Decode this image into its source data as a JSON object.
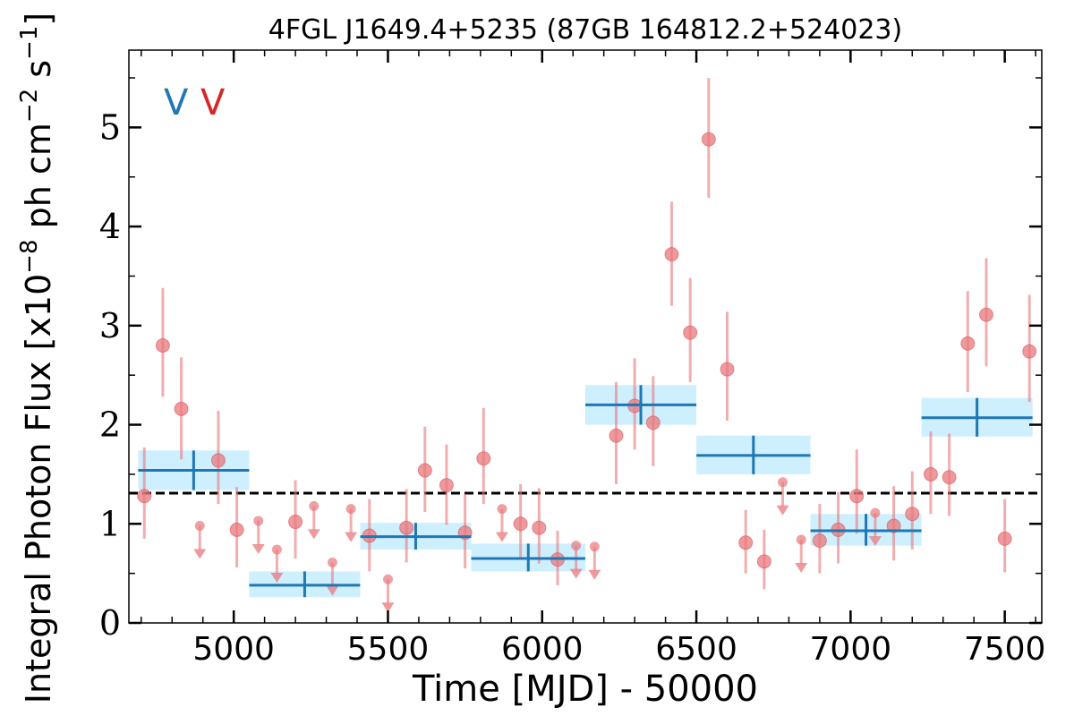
{
  "colors": {
    "bayesian_block": "#1f77b4",
    "bayesian_band": "#cdeffe",
    "light_curve": "#e8787c",
    "mean_line": "#000000",
    "axis": "#000000"
  },
  "chart_data": {
    "type": "scatter",
    "title": "4FGL J1649.4+5235 (87GB 164812.2+524023)",
    "xlabel": "Time [MJD] - 50000",
    "ylabel": "Integral Photon Flux [x10^-8 ph cm^-2 s^-1]",
    "ylabel_parts": {
      "main": "Integral Photon Flux [x10",
      "exp1": "−8",
      "mid": " ph cm",
      "exp2": "−2",
      "mid2": " s",
      "exp3": "−1",
      "end": "]"
    },
    "xlim": [
      4660,
      7620
    ],
    "ylim": [
      0,
      5.78
    ],
    "xticks": [
      5000,
      5500,
      6000,
      6500,
      7000,
      7500
    ],
    "yticks": [
      0,
      1,
      2,
      3,
      4,
      5
    ],
    "variability_flags": [
      {
        "text": "V",
        "color": "#1f77b4"
      },
      {
        "text": "V",
        "color": "#d62728"
      }
    ],
    "mean_flux": 1.31,
    "bayesian_blocks": [
      {
        "x0": 4690,
        "x1": 5050,
        "y": 1.54,
        "ylo": 1.34,
        "yhi": 1.74
      },
      {
        "x0": 5050,
        "x1": 5410,
        "y": 0.38,
        "ylo": 0.26,
        "yhi": 0.52
      },
      {
        "x0": 5410,
        "x1": 5770,
        "y": 0.87,
        "ylo": 0.74,
        "yhi": 1.01
      },
      {
        "x0": 5770,
        "x1": 6140,
        "y": 0.65,
        "ylo": 0.52,
        "yhi": 0.8
      },
      {
        "x0": 6140,
        "x1": 6500,
        "y": 2.2,
        "ylo": 2.0,
        "yhi": 2.4
      },
      {
        "x0": 6500,
        "x1": 6870,
        "y": 1.69,
        "ylo": 1.5,
        "yhi": 1.89
      },
      {
        "x0": 6870,
        "x1": 7230,
        "y": 0.93,
        "ylo": 0.78,
        "yhi": 1.1
      },
      {
        "x0": 7230,
        "x1": 7590,
        "y": 2.07,
        "ylo": 1.88,
        "yhi": 2.27
      }
    ],
    "detections": [
      {
        "x": 4710,
        "y": 1.28,
        "lo": 0.85,
        "hi": 1.77
      },
      {
        "x": 4770,
        "y": 2.8,
        "lo": 2.28,
        "hi": 3.38
      },
      {
        "x": 4830,
        "y": 2.16,
        "lo": 1.65,
        "hi": 2.68
      },
      {
        "x": 4950,
        "y": 1.64,
        "lo": 1.2,
        "hi": 2.14
      },
      {
        "x": 5010,
        "y": 0.94,
        "lo": 0.56,
        "hi": 1.37
      },
      {
        "x": 5200,
        "y": 1.02,
        "lo": 0.65,
        "hi": 1.44
      },
      {
        "x": 5440,
        "y": 0.88,
        "lo": 0.52,
        "hi": 1.25
      },
      {
        "x": 5560,
        "y": 0.96,
        "lo": 0.61,
        "hi": 1.35
      },
      {
        "x": 5620,
        "y": 1.54,
        "lo": 1.12,
        "hi": 1.98
      },
      {
        "x": 5690,
        "y": 1.39,
        "lo": 0.99,
        "hi": 1.8
      },
      {
        "x": 5750,
        "y": 0.91,
        "lo": 0.55,
        "hi": 1.3
      },
      {
        "x": 5810,
        "y": 1.66,
        "lo": 1.2,
        "hi": 2.17
      },
      {
        "x": 5930,
        "y": 1.0,
        "lo": 0.64,
        "hi": 1.4
      },
      {
        "x": 5990,
        "y": 0.96,
        "lo": 0.6,
        "hi": 1.36
      },
      {
        "x": 6050,
        "y": 0.64,
        "lo": 0.38,
        "hi": 0.93
      },
      {
        "x": 6240,
        "y": 1.89,
        "lo": 1.4,
        "hi": 2.43
      },
      {
        "x": 6300,
        "y": 2.19,
        "lo": 1.75,
        "hi": 2.67
      },
      {
        "x": 6360,
        "y": 2.02,
        "lo": 1.58,
        "hi": 2.49
      },
      {
        "x": 6420,
        "y": 3.72,
        "lo": 3.2,
        "hi": 4.25
      },
      {
        "x": 6480,
        "y": 2.93,
        "lo": 2.43,
        "hi": 3.48
      },
      {
        "x": 6540,
        "y": 4.88,
        "lo": 4.29,
        "hi": 5.5
      },
      {
        "x": 6600,
        "y": 2.56,
        "lo": 2.04,
        "hi": 3.14
      },
      {
        "x": 6660,
        "y": 0.81,
        "lo": 0.5,
        "hi": 1.14
      },
      {
        "x": 6720,
        "y": 0.62,
        "lo": 0.34,
        "hi": 0.94
      },
      {
        "x": 6900,
        "y": 0.83,
        "lo": 0.5,
        "hi": 1.2
      },
      {
        "x": 6960,
        "y": 0.94,
        "lo": 0.6,
        "hi": 1.32
      },
      {
        "x": 7020,
        "y": 1.28,
        "lo": 0.9,
        "hi": 1.75
      },
      {
        "x": 7140,
        "y": 0.98,
        "lo": 0.63,
        "hi": 1.38
      },
      {
        "x": 7200,
        "y": 1.1,
        "lo": 0.74,
        "hi": 1.53
      },
      {
        "x": 7260,
        "y": 1.5,
        "lo": 1.1,
        "hi": 1.93
      },
      {
        "x": 7320,
        "y": 1.47,
        "lo": 1.08,
        "hi": 1.91
      },
      {
        "x": 7380,
        "y": 2.82,
        "lo": 2.33,
        "hi": 3.35
      },
      {
        "x": 7440,
        "y": 3.11,
        "lo": 2.59,
        "hi": 3.68
      },
      {
        "x": 7500,
        "y": 0.85,
        "lo": 0.51,
        "hi": 1.25
      },
      {
        "x": 7580,
        "y": 2.74,
        "lo": 2.23,
        "hi": 3.31
      }
    ],
    "upper_limits": [
      {
        "x": 4890,
        "y": 0.98
      },
      {
        "x": 5080,
        "y": 1.03
      },
      {
        "x": 5140,
        "y": 0.74
      },
      {
        "x": 5260,
        "y": 1.18
      },
      {
        "x": 5320,
        "y": 0.61
      },
      {
        "x": 5380,
        "y": 1.15
      },
      {
        "x": 5500,
        "y": 0.44
      },
      {
        "x": 5870,
        "y": 1.15
      },
      {
        "x": 6110,
        "y": 0.78
      },
      {
        "x": 6170,
        "y": 0.77
      },
      {
        "x": 6780,
        "y": 1.42
      },
      {
        "x": 6840,
        "y": 0.84
      },
      {
        "x": 7080,
        "y": 1.11
      }
    ]
  }
}
